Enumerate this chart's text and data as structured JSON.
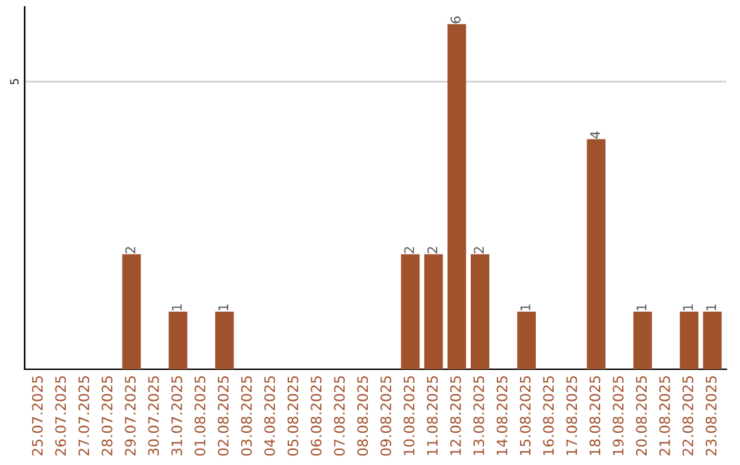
{
  "chart_data": {
    "type": "bar",
    "categories": [
      "25.07.2025",
      "26.07.2025",
      "27.07.2025",
      "28.07.2025",
      "29.07.2025",
      "30.07.2025",
      "31.07.2025",
      "01.08.2025",
      "02.08.2025",
      "03.08.2025",
      "04.08.2025",
      "05.08.2025",
      "06.08.2025",
      "07.08.2025",
      "08.08.2025",
      "09.08.2025",
      "10.08.2025",
      "11.08.2025",
      "12.08.2025",
      "13.08.2025",
      "14.08.2025",
      "15.08.2025",
      "16.08.2025",
      "17.08.2025",
      "18.08.2025",
      "19.08.2025",
      "20.08.2025",
      "21.08.2025",
      "22.08.2025",
      "23.08.2025"
    ],
    "values": [
      0,
      0,
      0,
      0,
      2,
      0,
      1,
      0,
      1,
      0,
      0,
      0,
      0,
      0,
      0,
      0,
      2,
      2,
      6,
      2,
      0,
      1,
      0,
      0,
      4,
      0,
      1,
      0,
      1,
      1
    ],
    "value_labels": [
      null,
      null,
      null,
      null,
      "2",
      null,
      "1",
      null,
      "1",
      null,
      null,
      null,
      null,
      null,
      null,
      null,
      "2",
      "2",
      "6",
      "2",
      null,
      "1",
      null,
      null,
      "4",
      null,
      "1",
      null,
      "1",
      "1"
    ],
    "color": "#a0522d",
    "ylim": [
      0,
      6.3
    ],
    "yticks": [
      5
    ],
    "grid": "y"
  }
}
